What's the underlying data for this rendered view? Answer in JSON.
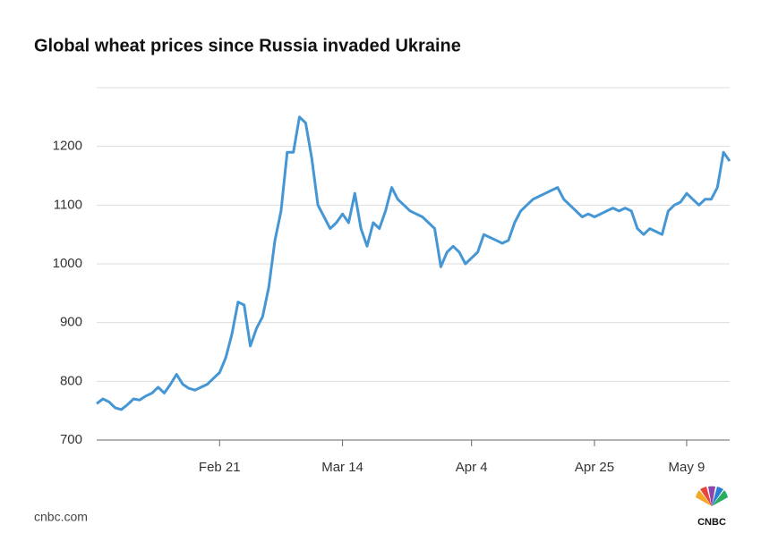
{
  "chart_data": {
    "type": "line",
    "title": "Global wheat prices since Russia invaded Ukraine",
    "source": "cnbc.com",
    "logo": "CNBC",
    "categories": [
      null,
      null,
      null,
      null,
      null,
      null,
      null,
      null,
      null,
      null,
      null,
      null,
      null,
      null,
      null,
      null,
      null,
      null,
      null,
      null,
      "Feb 21",
      null,
      null,
      null,
      null,
      null,
      null,
      null,
      null,
      null,
      null,
      null,
      null,
      null,
      null,
      null,
      null,
      null,
      null,
      null,
      "Mar 14",
      null,
      null,
      null,
      null,
      null,
      null,
      null,
      null,
      null,
      null,
      null,
      null,
      null,
      null,
      null,
      null,
      null,
      null,
      null,
      null,
      "Apr 4",
      null,
      null,
      null,
      null,
      null,
      null,
      null,
      null,
      null,
      null,
      null,
      null,
      null,
      null,
      null,
      null,
      null,
      null,
      null,
      "Apr 25",
      null,
      null,
      null,
      null,
      null,
      null,
      null,
      null,
      null,
      null,
      null,
      null,
      null,
      null,
      "May 9",
      null,
      null,
      null,
      null,
      null,
      null,
      null
    ],
    "series": [
      {
        "name": "Wheat price",
        "color": "#4596d5",
        "values": [
          762,
          770,
          765,
          755,
          752,
          760,
          770,
          768,
          775,
          780,
          790,
          780,
          795,
          812,
          795,
          788,
          785,
          790,
          795,
          805,
          815,
          840,
          880,
          935,
          930,
          860,
          890,
          910,
          960,
          1040,
          1090,
          1190,
          1190,
          1250,
          1240,
          1180,
          1100,
          1080,
          1060,
          1070,
          1085,
          1070,
          1120,
          1060,
          1030,
          1070,
          1060,
          1090,
          1130,
          1110,
          1100,
          1090,
          1085,
          1080,
          1070,
          1060,
          995,
          1020,
          1030,
          1020,
          1000,
          1010,
          1020,
          1050,
          1045,
          1040,
          1035,
          1040,
          1070,
          1090,
          1100,
          1110,
          1115,
          1120,
          1125,
          1130,
          1110,
          1100,
          1090,
          1080,
          1085,
          1080,
          1085,
          1090,
          1095,
          1090,
          1095,
          1090,
          1060,
          1050,
          1060,
          1055,
          1050,
          1090,
          1100,
          1105,
          1120,
          1110,
          1100,
          1110,
          1110,
          1130,
          1190,
          1175
        ]
      }
    ],
    "ylim": [
      700,
      1300
    ],
    "yticks": [
      700,
      800,
      900,
      1000,
      1100,
      1200
    ],
    "grid": true
  }
}
